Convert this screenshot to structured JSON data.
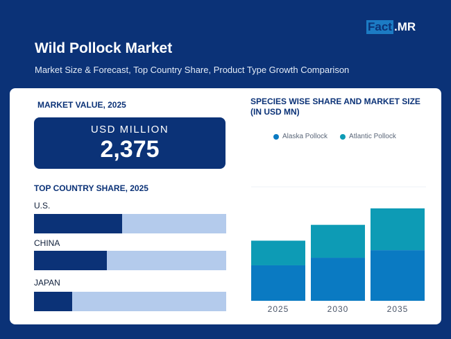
{
  "brand": {
    "logo_part1": "Fact",
    "logo_part2": ".MR"
  },
  "header": {
    "title": "Wild Pollock Market",
    "subtitle": "Market Size & Forecast, Top Country Share, Product Type Growth Comparison"
  },
  "market_value": {
    "label": "MARKET VALUE, 2025",
    "unit": "USD MILLION",
    "value": "2,375"
  },
  "country_share": {
    "label": "TOP COUNTRY SHARE, 2025",
    "countries": [
      {
        "name": "U.S.",
        "share": 0.46
      },
      {
        "name": "CHINA",
        "share": 0.38
      },
      {
        "name": "JAPAN",
        "share": 0.2
      }
    ]
  },
  "colors": {
    "navy": "#0b3277",
    "alaska": "#0a7ac2",
    "atlantic": "#0d9bb5",
    "track": "#b4cbec"
  },
  "chart_data": {
    "type": "bar",
    "stacked": true,
    "title": "SPECIES WISE SHARE AND MARKET SIZE (IN USD MN)",
    "categories": [
      "2025",
      "2030",
      "2035"
    ],
    "series": [
      {
        "name": "Alaska Pollock",
        "values": [
          1400,
          1700,
          2000
        ]
      },
      {
        "name": "Atlantic Pollock",
        "values": [
          975,
          1300,
          1650
        ]
      }
    ],
    "ylim": [
      0,
      4500
    ],
    "legend_position": "top"
  }
}
